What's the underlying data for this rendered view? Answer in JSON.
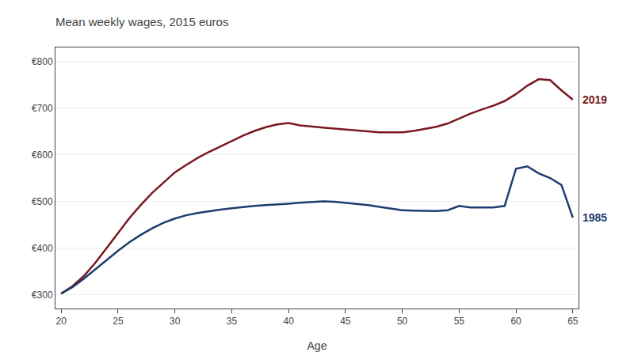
{
  "chart_data": {
    "type": "line",
    "title": "Mean weekly wages, 2015 euros",
    "xlabel": "Age",
    "x": [
      20,
      21,
      22,
      23,
      24,
      25,
      26,
      27,
      28,
      29,
      30,
      31,
      32,
      33,
      34,
      35,
      36,
      37,
      38,
      39,
      40,
      41,
      42,
      43,
      44,
      45,
      46,
      47,
      48,
      49,
      50,
      51,
      52,
      53,
      54,
      55,
      56,
      57,
      58,
      59,
      60,
      61,
      62,
      63,
      64,
      65
    ],
    "series": [
      {
        "name": "2019",
        "color": "#7a1820",
        "values": [
          302,
          318,
          340,
          368,
          400,
          432,
          464,
          492,
          518,
          540,
          562,
          578,
          593,
          606,
          618,
          630,
          641,
          651,
          659,
          665,
          668,
          663,
          660,
          658,
          656,
          654,
          652,
          650,
          648,
          648,
          648,
          651,
          655,
          660,
          667,
          678,
          688,
          697,
          705,
          715,
          730,
          748,
          762,
          760,
          738,
          718
        ]
      },
      {
        "name": "1985",
        "color": "#1e3d6e",
        "values": [
          302,
          316,
          334,
          354,
          374,
          394,
          412,
          428,
          442,
          454,
          463,
          470,
          475,
          479,
          482,
          485,
          488,
          490,
          492,
          493,
          495,
          497,
          499,
          500,
          499,
          497,
          495,
          492,
          488,
          484,
          481,
          480,
          479,
          479,
          481,
          490,
          487,
          487,
          487,
          490,
          570,
          575,
          560,
          550,
          535,
          465
        ]
      }
    ],
    "xlim": [
      19.5,
      65.5
    ],
    "xticks": [
      20,
      25,
      30,
      35,
      40,
      45,
      50,
      55,
      60,
      65
    ],
    "ylim": [
      270,
      830
    ],
    "yticks": [
      {
        "value": 300,
        "label": "€300"
      },
      {
        "value": 400,
        "label": "€400"
      },
      {
        "value": 500,
        "label": "€500"
      },
      {
        "value": 600,
        "label": "€600"
      },
      {
        "value": 700,
        "label": "€700"
      },
      {
        "value": 800,
        "label": "€800"
      }
    ],
    "grid": "y"
  }
}
